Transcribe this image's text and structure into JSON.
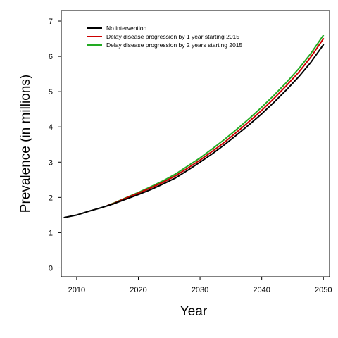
{
  "chart_data": {
    "type": "line",
    "title": "",
    "xlabel": "Year",
    "ylabel": "Prevalence (in millions)",
    "xlim": [
      2007.5,
      2051
    ],
    "ylim": [
      -0.25,
      7.3
    ],
    "xticks": [
      2010,
      2020,
      2030,
      2040,
      2050
    ],
    "yticks": [
      0,
      1,
      2,
      3,
      4,
      5,
      6,
      7
    ],
    "grid": false,
    "legend_position": "top-left",
    "series": [
      {
        "name": "No intervention",
        "color": "#000000",
        "x": [
          2008,
          2010,
          2012,
          2014,
          2016,
          2018,
          2020,
          2022,
          2024,
          2026,
          2028,
          2030,
          2032,
          2034,
          2036,
          2038,
          2040,
          2042,
          2044,
          2046,
          2048,
          2050
        ],
        "values": [
          1.43,
          1.5,
          1.61,
          1.71,
          1.82,
          1.95,
          2.08,
          2.22,
          2.38,
          2.55,
          2.77,
          3.0,
          3.24,
          3.5,
          3.78,
          4.07,
          4.37,
          4.7,
          5.05,
          5.42,
          5.84,
          6.33
        ]
      },
      {
        "name": "Delay disease progression by 1 year starting 2015",
        "color": "#cc0000",
        "x": [
          2015,
          2016,
          2018,
          2020,
          2022,
          2024,
          2026,
          2028,
          2030,
          2032,
          2034,
          2036,
          2038,
          2040,
          2042,
          2044,
          2046,
          2048,
          2050
        ],
        "values": [
          1.77,
          1.83,
          1.98,
          2.12,
          2.27,
          2.43,
          2.61,
          2.83,
          3.06,
          3.31,
          3.57,
          3.86,
          4.16,
          4.47,
          4.81,
          5.17,
          5.55,
          5.99,
          6.5
        ]
      },
      {
        "name": "Delay disease progression by 2 years starting 2015",
        "color": "#22aa22",
        "x": [
          2015,
          2016,
          2018,
          2020,
          2022,
          2024,
          2026,
          2028,
          2030,
          2032,
          2034,
          2036,
          2038,
          2040,
          2042,
          2044,
          2046,
          2048,
          2050
        ],
        "values": [
          1.77,
          1.84,
          1.99,
          2.14,
          2.3,
          2.47,
          2.66,
          2.89,
          3.12,
          3.38,
          3.65,
          3.94,
          4.24,
          4.56,
          4.9,
          5.26,
          5.65,
          6.09,
          6.6
        ]
      }
    ]
  }
}
